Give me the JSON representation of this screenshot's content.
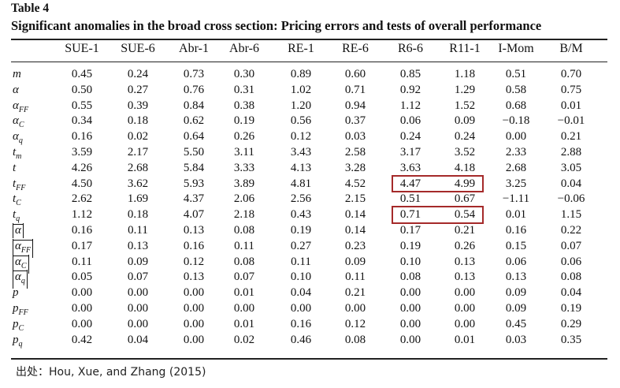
{
  "table": {
    "label": "Table 4",
    "title": "Significant anomalies in the broad cross section: Pricing errors and tests of overall performance",
    "columns": [
      "SUE-1",
      "SUE-6",
      "Abr-1",
      "Abr-6",
      "RE-1",
      "RE-6",
      "R6-6",
      "R11-1",
      "I-Mom",
      "B/M"
    ],
    "rows": [
      {
        "label": "m",
        "sub": "",
        "abs": false,
        "values": [
          "0.45",
          "0.24",
          "0.73",
          "0.30",
          "0.89",
          "0.60",
          "0.85",
          "1.18",
          "0.51",
          "0.70"
        ]
      },
      {
        "label": "α",
        "sub": "",
        "abs": false,
        "values": [
          "0.50",
          "0.27",
          "0.76",
          "0.31",
          "1.02",
          "0.71",
          "0.92",
          "1.29",
          "0.58",
          "0.75"
        ]
      },
      {
        "label": "α",
        "sub": "FF",
        "abs": false,
        "values": [
          "0.55",
          "0.39",
          "0.84",
          "0.38",
          "1.20",
          "0.94",
          "1.12",
          "1.52",
          "0.68",
          "0.01"
        ]
      },
      {
        "label": "α",
        "sub": "C",
        "abs": false,
        "values": [
          "0.34",
          "0.18",
          "0.62",
          "0.19",
          "0.56",
          "0.37",
          "0.06",
          "0.09",
          "−0.18",
          "−0.01"
        ]
      },
      {
        "label": "α",
        "sub": "q",
        "abs": false,
        "values": [
          "0.16",
          "0.02",
          "0.64",
          "0.26",
          "0.12",
          "0.03",
          "0.24",
          "0.24",
          "0.00",
          "0.21"
        ]
      },
      {
        "label": "t",
        "sub": "m",
        "abs": false,
        "values": [
          "3.59",
          "2.17",
          "5.50",
          "3.11",
          "3.43",
          "2.58",
          "3.17",
          "3.52",
          "2.33",
          "2.88"
        ]
      },
      {
        "label": "t",
        "sub": "",
        "abs": false,
        "values": [
          "4.26",
          "2.68",
          "5.84",
          "3.33",
          "4.13",
          "3.28",
          "3.63",
          "4.18",
          "2.68",
          "3.05"
        ]
      },
      {
        "label": "t",
        "sub": "FF",
        "abs": false,
        "values": [
          "4.50",
          "3.62",
          "5.93",
          "3.89",
          "4.81",
          "4.52",
          "4.47",
          "4.99",
          "3.25",
          "0.04"
        ]
      },
      {
        "label": "t",
        "sub": "C",
        "abs": false,
        "values": [
          "2.62",
          "1.69",
          "4.37",
          "2.06",
          "2.56",
          "2.15",
          "0.51",
          "0.67",
          "−1.11",
          "−0.06"
        ]
      },
      {
        "label": "t",
        "sub": "q",
        "abs": false,
        "values": [
          "1.12",
          "0.18",
          "4.07",
          "2.18",
          "0.43",
          "0.14",
          "0.71",
          "0.54",
          "0.01",
          "1.15"
        ]
      },
      {
        "label": "α",
        "sub": "",
        "abs": true,
        "values": [
          "0.16",
          "0.11",
          "0.13",
          "0.08",
          "0.19",
          "0.14",
          "0.17",
          "0.21",
          "0.16",
          "0.22"
        ]
      },
      {
        "label": "α",
        "sub": "FF",
        "abs": true,
        "values": [
          "0.17",
          "0.13",
          "0.16",
          "0.11",
          "0.27",
          "0.23",
          "0.19",
          "0.26",
          "0.15",
          "0.07"
        ]
      },
      {
        "label": "α",
        "sub": "C",
        "abs": true,
        "values": [
          "0.11",
          "0.09",
          "0.12",
          "0.08",
          "0.11",
          "0.09",
          "0.10",
          "0.13",
          "0.06",
          "0.06"
        ]
      },
      {
        "label": "α",
        "sub": "q",
        "abs": true,
        "values": [
          "0.05",
          "0.07",
          "0.13",
          "0.07",
          "0.10",
          "0.11",
          "0.08",
          "0.13",
          "0.13",
          "0.08"
        ]
      },
      {
        "label": "p",
        "sub": "",
        "abs": false,
        "values": [
          "0.00",
          "0.00",
          "0.00",
          "0.01",
          "0.04",
          "0.21",
          "0.00",
          "0.00",
          "0.09",
          "0.04"
        ]
      },
      {
        "label": "p",
        "sub": "FF",
        "abs": false,
        "values": [
          "0.00",
          "0.00",
          "0.00",
          "0.00",
          "0.00",
          "0.00",
          "0.00",
          "0.00",
          "0.09",
          "0.19"
        ]
      },
      {
        "label": "p",
        "sub": "C",
        "abs": false,
        "values": [
          "0.00",
          "0.00",
          "0.00",
          "0.01",
          "0.16",
          "0.12",
          "0.00",
          "0.00",
          "0.45",
          "0.29"
        ]
      },
      {
        "label": "p",
        "sub": "q",
        "abs": false,
        "values": [
          "0.42",
          "0.04",
          "0.00",
          "0.02",
          "0.46",
          "0.08",
          "0.00",
          "0.01",
          "0.03",
          "0.35"
        ]
      }
    ],
    "highlights": [
      {
        "row": 7,
        "cols": [
          6,
          7
        ],
        "color": "#a52a2a"
      },
      {
        "row": 9,
        "cols": [
          6,
          7
        ],
        "color": "#a52a2a"
      }
    ]
  },
  "source": "出处：Hou, Xue, and Zhang (2015)"
}
